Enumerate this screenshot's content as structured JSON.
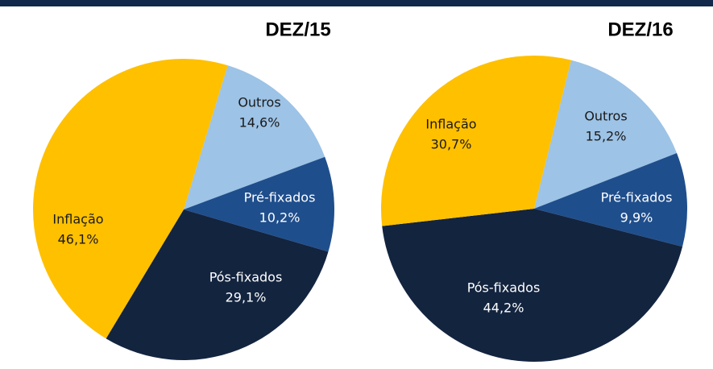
{
  "chart_data": [
    {
      "type": "pie",
      "title": "DEZ/15",
      "categories": [
        "Outros",
        "Pré-fixados",
        "Pós-fixados",
        "Inflação"
      ],
      "values": [
        14.6,
        10.2,
        29.1,
        46.1
      ],
      "value_labels": [
        "14,6%",
        "10,2%",
        "29,1%",
        "46,1%"
      ],
      "colors": [
        "#9dc3e6",
        "#1f4e8c",
        "#13243f",
        "#ffc000"
      ]
    },
    {
      "type": "pie",
      "title": "DEZ/16",
      "categories": [
        "Outros",
        "Pré-fixados",
        "Pós-fixados",
        "Inflação"
      ],
      "values": [
        15.2,
        9.9,
        44.2,
        30.7
      ],
      "value_labels": [
        "15,2%",
        "9,9%",
        "44,2%",
        "30,7%"
      ],
      "colors": [
        "#9dc3e6",
        "#1f4e8c",
        "#13243f",
        "#ffc000"
      ]
    }
  ]
}
